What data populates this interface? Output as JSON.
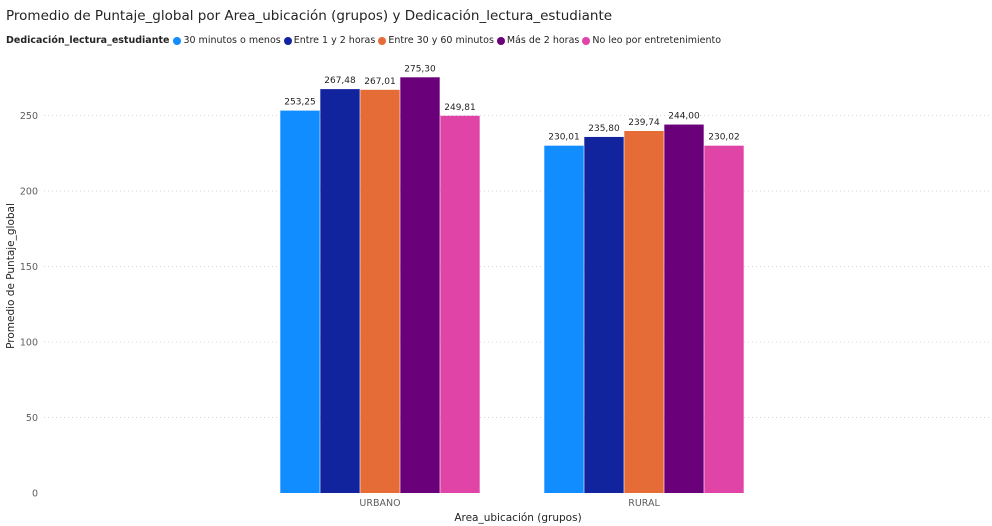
{
  "title": "Promedio de Puntaje_global por Area_ubicación (grupos) y Dedicación_lectura_estudiante",
  "legend": {
    "title": "Dedicación_lectura_estudiante",
    "placement": "top-left"
  },
  "chart_data": {
    "type": "bar",
    "title": "Promedio de Puntaje_global por Area_ubicación (grupos) y Dedicación_lectura_estudiante",
    "xlabel": "Area_ubicación (grupos)",
    "ylabel": "Promedio de Puntaje_global",
    "categories": [
      "URBANO",
      "RURAL"
    ],
    "ylim": [
      0,
      280
    ],
    "yticks": [
      0,
      50,
      100,
      150,
      200,
      250
    ],
    "grid": true,
    "series": [
      {
        "name": "30 minutos o menos",
        "color": "#118DFF",
        "values": [
          253.25,
          230.01
        ],
        "labels": [
          "253,25",
          "230,01"
        ]
      },
      {
        "name": "Entre 1 y 2 horas",
        "color": "#12239E",
        "values": [
          267.48,
          235.8
        ],
        "labels": [
          "267,48",
          "235,80"
        ]
      },
      {
        "name": "Entre 30 y 60 minutos",
        "color": "#E66C37",
        "values": [
          267.01,
          239.74
        ],
        "labels": [
          "267,01",
          "239,74"
        ]
      },
      {
        "name": "Más de 2 horas",
        "color": "#6B007B",
        "values": [
          275.3,
          244.0
        ],
        "labels": [
          "275,30",
          "244,00"
        ]
      },
      {
        "name": "No leo por entretenimiento",
        "color": "#E044A7",
        "values": [
          249.81,
          230.02
        ],
        "labels": [
          "249,81",
          "230,02"
        ]
      }
    ]
  }
}
